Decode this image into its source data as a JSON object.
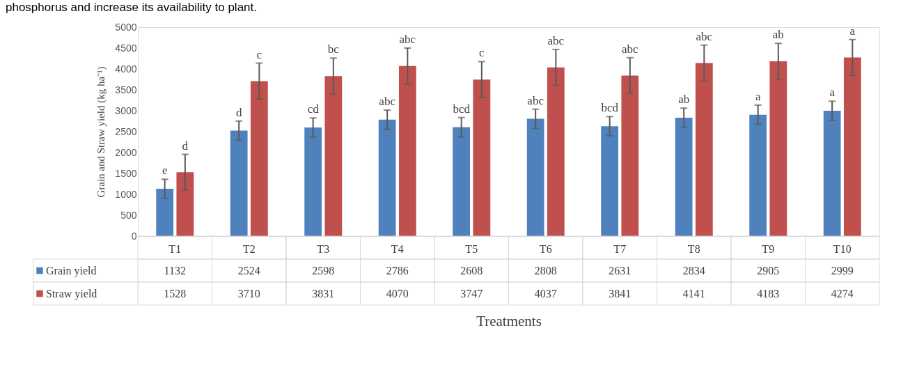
{
  "chart_data": {
    "type": "bar",
    "ylabel": "Grain and Straw yield (kg ha⁻¹)",
    "xlabel": "Treatments",
    "categories": [
      "T1",
      "T2",
      "T3",
      "T4",
      "T5",
      "T6",
      "T7",
      "T8",
      "T9",
      "T10"
    ],
    "series": [
      {
        "name": "Grain yield",
        "color": "#4f81bd",
        "values": [
          1132,
          2524,
          2598,
          2786,
          2608,
          2808,
          2631,
          2834,
          2905,
          2999
        ],
        "errors": [
          230,
          230,
          230,
          230,
          230,
          230,
          230,
          230,
          230,
          230
        ]
      },
      {
        "name": "Straw yield",
        "color": "#c0504d",
        "values": [
          1528,
          3710,
          3831,
          4070,
          3747,
          4037,
          3841,
          4141,
          4183,
          4274
        ],
        "errors": [
          430,
          430,
          430,
          430,
          430,
          430,
          430,
          430,
          430,
          430
        ]
      }
    ],
    "annotations": [
      "phosphorus and increase its availability to plant.",
      "e",
      "d",
      "d",
      "c",
      "cd",
      "bc",
      "abc",
      "abc",
      "bcd",
      "c",
      "abc",
      "abc",
      "bcd",
      "abc",
      "ab",
      "abc",
      "a",
      "ab",
      "a",
      "a"
    ],
    "ylim": [
      0,
      5000
    ],
    "yticks": [
      0,
      500,
      1000,
      1500,
      2000,
      2500,
      3000,
      3500,
      4000,
      4500,
      5000
    ],
    "grid": false,
    "legend": "bottom",
    "data_labels": true
  }
}
